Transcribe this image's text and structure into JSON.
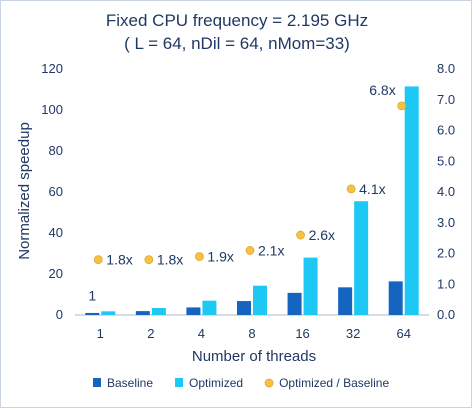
{
  "chart_data": {
    "type": "bar",
    "title": "Fixed CPU frequency = 2.195 GHz",
    "subtitle": "( L = 64, nDil = 64, nMom=33)",
    "xlabel": "Number of threads",
    "ylabel": "Normalized speedup",
    "categories": [
      "1",
      "2",
      "4",
      "8",
      "16",
      "32",
      "64"
    ],
    "ylim": [
      0,
      120
    ],
    "y_ticks": [
      "0",
      "20",
      "40",
      "60",
      "80",
      "100",
      "120"
    ],
    "y2lim": [
      0,
      8.0
    ],
    "y2_ticks": [
      "0.0",
      "1.0",
      "2.0",
      "3.0",
      "4.0",
      "5.0",
      "6.0",
      "7.0",
      "8.0"
    ],
    "grid": false,
    "legend_position": "bottom",
    "series": [
      {
        "name": "Baseline",
        "type": "bar",
        "axis": "left",
        "color": "#1565c0",
        "values": [
          1,
          1.9,
          3.7,
          6.8,
          10.8,
          13.5,
          16.4
        ]
      },
      {
        "name": "Optimized",
        "type": "bar",
        "axis": "left",
        "color": "#1ec8f5",
        "values": [
          1.8,
          3.4,
          7.0,
          14.3,
          28.0,
          55.5,
          111.5
        ]
      },
      {
        "name": "Optimized / Baseline",
        "type": "scatter",
        "axis": "right",
        "color": "#f5c242",
        "values": [
          1.8,
          1.8,
          1.9,
          2.1,
          2.6,
          4.1,
          6.8
        ],
        "labels": [
          "1.8x",
          "1.8x",
          "1.9x",
          "2.1x",
          "2.6x",
          "4.1x",
          "6.8x"
        ]
      }
    ],
    "annotations": [
      {
        "text": "1",
        "category": "1",
        "y": 6
      }
    ]
  }
}
